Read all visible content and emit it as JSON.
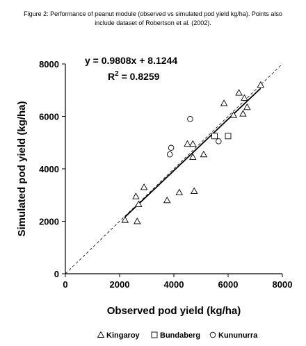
{
  "caption": "Figure 2: Performance of peanut module (observed vs simulated pod yield kg/ha). Points also include dataset of Robertson et al. (2002).",
  "chart_data": {
    "type": "scatter",
    "xlabel": "Observed pod yield (kg/ha)",
    "ylabel": "Simulated pod yield (kg/ha)",
    "xlim": [
      0,
      8000
    ],
    "ylim": [
      0,
      8000
    ],
    "xticks": [
      "0",
      "2000",
      "4000",
      "6000",
      "8000"
    ],
    "yticks": [
      "0",
      "2000",
      "4000",
      "6000",
      "8000"
    ],
    "equation": "y = 0.9808x + 8.1244",
    "r2_prefix": "R",
    "r2_sup": "2",
    "r2_suffix": " = 0.8259",
    "regression": {
      "slope": 0.9808,
      "intercept": 8.1244,
      "x_range": [
        2200,
        7200
      ]
    },
    "one_to_one_line": true,
    "legend_position": "bottom",
    "series": [
      {
        "name": "Kingaroy",
        "marker": "triangle",
        "x": [
          2200,
          2600,
          2650,
          2700,
          2900,
          3750,
          4200,
          4500,
          4700,
          4700,
          4750,
          5100,
          5850,
          6200,
          6400,
          6550,
          6600,
          6700,
          7200
        ],
        "y": [
          2050,
          2950,
          2000,
          2650,
          3300,
          2800,
          3100,
          4950,
          4450,
          4950,
          3150,
          4550,
          6500,
          6050,
          6900,
          6100,
          6700,
          6350,
          7200
        ]
      },
      {
        "name": "Bundaberg",
        "marker": "square",
        "x": [
          5500,
          6000
        ],
        "y": [
          5250,
          5250
        ]
      },
      {
        "name": "Kununurra",
        "marker": "circle",
        "x": [
          3850,
          3900,
          4600,
          5650
        ],
        "y": [
          4550,
          4800,
          5900,
          5050
        ]
      }
    ]
  }
}
